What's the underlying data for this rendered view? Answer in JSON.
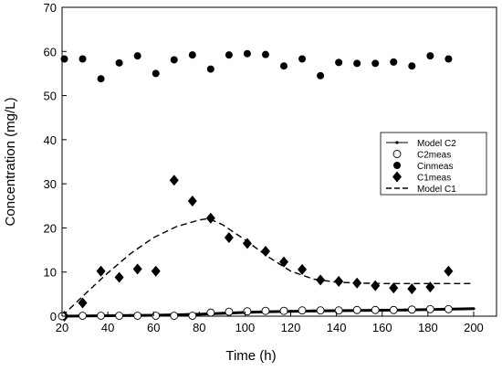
{
  "chart_data": {
    "type": "scatter",
    "xlabel": "Time (h)",
    "ylabel": "Concentration (mg/L)",
    "xlim": [
      20,
      210
    ],
    "ylim": [
      0,
      70
    ],
    "xticks": [
      20,
      40,
      60,
      80,
      100,
      120,
      140,
      160,
      180,
      200
    ],
    "yticks": [
      0,
      10,
      20,
      30,
      40,
      50,
      60,
      70
    ],
    "grid": false,
    "legend_position": "right-middle",
    "series": [
      {
        "name": "Model C2",
        "kind": "line-with-dots",
        "x": [
          20,
          30,
          40,
          50,
          60,
          70,
          80,
          90,
          100,
          110,
          120,
          130,
          140,
          150,
          160,
          170,
          180,
          190,
          200
        ],
        "y": [
          0.0,
          0.05,
          0.1,
          0.15,
          0.2,
          0.3,
          0.45,
          0.65,
          0.85,
          1.0,
          1.1,
          1.2,
          1.25,
          1.3,
          1.35,
          1.4,
          1.5,
          1.6,
          1.7
        ]
      },
      {
        "name": "C2meas",
        "kind": "open-circle",
        "x": [
          20,
          29,
          37,
          45,
          53,
          61,
          69,
          77,
          85,
          93,
          101,
          109,
          117,
          125,
          133,
          141,
          149,
          157,
          165,
          173,
          181,
          189
        ],
        "y": [
          0.0,
          0.1,
          0.1,
          0.1,
          0.1,
          0.1,
          0.1,
          0.1,
          0.8,
          1.0,
          1.1,
          1.2,
          1.2,
          1.3,
          1.3,
          1.3,
          1.4,
          1.4,
          1.4,
          1.5,
          1.6,
          1.6
        ]
      },
      {
        "name": "Cinmeas",
        "kind": "filled-circle",
        "x": [
          21,
          29,
          37,
          45,
          53,
          61,
          69,
          77,
          85,
          93,
          101,
          109,
          117,
          125,
          133,
          141,
          149,
          157,
          165,
          173,
          181,
          189
        ],
        "y": [
          58.3,
          58.3,
          53.8,
          57.4,
          59.0,
          55.0,
          58.1,
          59.2,
          56.0,
          59.2,
          59.5,
          59.3,
          56.7,
          58.3,
          54.5,
          57.5,
          57.3,
          57.3,
          57.6,
          56.7,
          59.0,
          58.3
        ]
      },
      {
        "name": "C1meas",
        "kind": "diamond",
        "x": [
          21,
          29,
          37,
          45,
          53,
          61,
          69,
          77,
          85,
          93,
          101,
          109,
          117,
          125,
          133,
          141,
          149,
          157,
          165,
          173,
          181,
          189
        ],
        "y": [
          0.0,
          3.0,
          10.2,
          8.8,
          10.7,
          10.2,
          30.8,
          26.1,
          22.2,
          17.8,
          16.5,
          14.7,
          12.3,
          10.6,
          8.2,
          7.9,
          7.5,
          6.9,
          6.4,
          6.2,
          6.6,
          10.2
        ]
      },
      {
        "name": "Model C1",
        "kind": "dashed-line",
        "x": [
          20,
          30,
          40,
          50,
          60,
          70,
          80,
          84,
          90,
          100,
          110,
          120,
          130,
          140,
          150,
          160,
          170,
          180,
          190,
          200
        ],
        "y": [
          0.0,
          5.0,
          9.8,
          14.2,
          17.8,
          20.3,
          21.8,
          22.1,
          20.8,
          17.3,
          13.5,
          10.2,
          8.4,
          7.7,
          7.5,
          7.4,
          7.4,
          7.4,
          7.4,
          7.4
        ]
      }
    ]
  }
}
